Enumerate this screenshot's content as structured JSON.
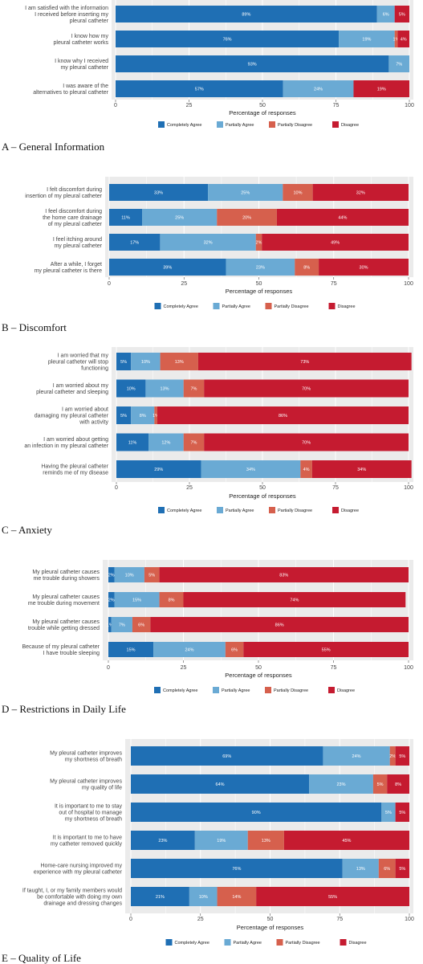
{
  "colors": {
    "Completely Agree": "#1f6fb4",
    "Partially Agree": "#6aaad4",
    "Partially Disagree": "#d6604d",
    "Disagree": "#c51b30",
    "panel": "#ebebeb",
    "grid": "#ffffff"
  },
  "chart_data": [
    {
      "type": "bar",
      "orientation": "horizontal",
      "stacked": true,
      "caption": "A – General Information",
      "xlabel": "Percentage of responses",
      "xlim": [
        0,
        100
      ],
      "xticks": [
        "0",
        "25",
        "50",
        "75",
        "100"
      ],
      "legend_position": "bottom",
      "legend": [
        "Completely Agree",
        "Partially Agree",
        "Partially Disagree",
        "Disagree"
      ],
      "categories": [
        [
          "I am satisfied with the information",
          "I received before inserting my",
          "pleural catheter"
        ],
        [
          "I know how my",
          "pleural catheter works"
        ],
        [
          "I know why I received",
          "my pleural catheter"
        ],
        [
          "I was aware of the",
          "alternatives to pleural catheter"
        ]
      ],
      "series": [
        {
          "name": "Completely Agree",
          "values": [
            89,
            76,
            93,
            57
          ],
          "labels": [
            "89%",
            "76%",
            "93%",
            "57%"
          ]
        },
        {
          "name": "Partially Agree",
          "values": [
            6,
            19,
            7,
            24
          ],
          "labels": [
            "6%",
            "19%",
            "7%",
            "24%"
          ]
        },
        {
          "name": "Partially Disagree",
          "values": [
            0,
            1,
            0,
            0
          ],
          "labels": [
            "",
            "1%",
            "",
            ""
          ]
        },
        {
          "name": "Disagree",
          "values": [
            5,
            4,
            0,
            19
          ],
          "labels": [
            "5%",
            "4%",
            "",
            "19%"
          ]
        }
      ]
    },
    {
      "type": "bar",
      "orientation": "horizontal",
      "stacked": true,
      "caption": "B – Discomfort",
      "xlabel": "Percentage of responses",
      "xlim": [
        0,
        100
      ],
      "xticks": [
        "0",
        "25",
        "50",
        "75",
        "100"
      ],
      "legend_position": "bottom",
      "legend": [
        "Completely Agree",
        "Partially Agree",
        "Partially Disagree",
        "Disagree"
      ],
      "categories": [
        [
          "I felt discomfort during",
          "insertion of my pleural catheter"
        ],
        [
          "I feel discomfort during",
          "the home care drainage",
          "of my pleural catheter"
        ],
        [
          "I feel itching around",
          "my pleural catheter"
        ],
        [
          "After a while, I forget",
          "my pleural catheter is there"
        ]
      ],
      "series": [
        {
          "name": "Completely Agree",
          "values": [
            33,
            11,
            17,
            39
          ],
          "labels": [
            "33%",
            "11%",
            "17%",
            "39%"
          ]
        },
        {
          "name": "Partially Agree",
          "values": [
            25,
            25,
            32,
            23
          ],
          "labels": [
            "25%",
            "25%",
            "32%",
            "23%"
          ]
        },
        {
          "name": "Partially Disagree",
          "values": [
            10,
            20,
            2,
            8
          ],
          "labels": [
            "10%",
            "20%",
            "2%",
            "8%"
          ]
        },
        {
          "name": "Disagree",
          "values": [
            32,
            44,
            49,
            30
          ],
          "labels": [
            "32%",
            "44%",
            "49%",
            "30%"
          ]
        }
      ]
    },
    {
      "type": "bar",
      "orientation": "horizontal",
      "stacked": true,
      "caption": "C – Anxiety",
      "xlabel": "Percentage of responses",
      "xlim": [
        0,
        100
      ],
      "xticks": [
        "0",
        "25",
        "50",
        "75",
        "100"
      ],
      "legend_position": "bottom",
      "legend": [
        "Completely Agree",
        "Partially Agree",
        "Partially Disagree",
        "Disagree"
      ],
      "categories": [
        [
          "I am worried that my",
          "pleural catheter will stop",
          "functioning"
        ],
        [
          "I am worried about my",
          "pleural catheter and sleeping"
        ],
        [
          "I am worried about",
          "damaging my pleural catheter",
          "with activity"
        ],
        [
          "I am worried about getting",
          "an infection in my pleural catheter"
        ],
        [
          "Having the pleural catheter",
          "reminds me of my disease"
        ]
      ],
      "series": [
        {
          "name": "Completely Agree",
          "values": [
            5,
            10,
            5,
            11,
            29
          ],
          "labels": [
            "5%",
            "10%",
            "5%",
            "11%",
            "29%"
          ]
        },
        {
          "name": "Partially Agree",
          "values": [
            10,
            13,
            8,
            12,
            34
          ],
          "labels": [
            "10%",
            "13%",
            "8%",
            "12%",
            "34%"
          ]
        },
        {
          "name": "Partially Disagree",
          "values": [
            13,
            7,
            1,
            7,
            4
          ],
          "labels": [
            "13%",
            "7%",
            "1%",
            "7%",
            "4%"
          ]
        },
        {
          "name": "Disagree",
          "values": [
            73,
            70,
            86,
            70,
            34
          ],
          "labels": [
            "73%",
            "70%",
            "86%",
            "70%",
            "34%"
          ]
        }
      ]
    },
    {
      "type": "bar",
      "orientation": "horizontal",
      "stacked": true,
      "caption": "D – Restrictions in Daily Life",
      "xlabel": "Percentage of responses",
      "xlim": [
        0,
        100
      ],
      "xticks": [
        "0",
        "25",
        "50",
        "75",
        "100"
      ],
      "legend_position": "bottom",
      "legend": [
        "Completely Agree",
        "Partially Agree",
        "Partially Disagree",
        "Disagree"
      ],
      "categories": [
        [
          "My pleural catheter causes",
          "me trouble during showers"
        ],
        [
          "My pleural catheter causes",
          "me trouble during movement"
        ],
        [
          "My pleural catheter causes",
          "trouble while getting dressed"
        ],
        [
          "Because of my pleural catheter",
          "I have trouble sleeping"
        ]
      ],
      "series": [
        {
          "name": "Completely Agree",
          "values": [
            2,
            2,
            1,
            15
          ],
          "labels": [
            "2%",
            "2%",
            "1%",
            "15%"
          ]
        },
        {
          "name": "Partially Agree",
          "values": [
            10,
            15,
            7,
            24
          ],
          "labels": [
            "10%",
            "15%",
            "7%",
            "24%"
          ]
        },
        {
          "name": "Partially Disagree",
          "values": [
            5,
            8,
            6,
            6
          ],
          "labels": [
            "5%",
            "8%",
            "6%",
            "6%"
          ]
        },
        {
          "name": "Disagree",
          "values": [
            83,
            74,
            86,
            55
          ],
          "labels": [
            "83%",
            "74%",
            "86%",
            "55%"
          ]
        }
      ]
    },
    {
      "type": "bar",
      "orientation": "horizontal",
      "stacked": true,
      "caption": "E – Quality of Life",
      "xlabel": "Percentage of responses",
      "xlim": [
        0,
        100
      ],
      "xticks": [
        "0",
        "25",
        "50",
        "75",
        "100"
      ],
      "legend_position": "bottom",
      "legend": [
        "Completely Agree",
        "Partially Agree",
        "Partially Disagree",
        "Disagree"
      ],
      "categories": [
        [
          "My pleural catheter improves",
          "my shortness of breath"
        ],
        [
          "My pleural catheter improves",
          "my quality of life"
        ],
        [
          "It is important to me to stay",
          "out of hospital to manage",
          "my shortness of breath"
        ],
        [
          "It is important to me to have",
          "my catheter removed quickly"
        ],
        [
          "Home-care nursing improved my",
          "experience with my pleural catheter"
        ],
        [
          "If taught, I, or my family members would",
          "be comfortable with doing my own",
          "drainage and dressing changes"
        ]
      ],
      "series": [
        {
          "name": "Completely Agree",
          "values": [
            69,
            64,
            90,
            23,
            76,
            21
          ],
          "labels": [
            "69%",
            "64%",
            "90%",
            "23%",
            "76%",
            "21%"
          ]
        },
        {
          "name": "Partially Agree",
          "values": [
            24,
            23,
            5,
            19,
            13,
            10
          ],
          "labels": [
            "24%",
            "23%",
            "5%",
            "19%",
            "13%",
            "10%"
          ]
        },
        {
          "name": "Partially Disagree",
          "values": [
            2,
            5,
            0,
            13,
            6,
            14
          ],
          "labels": [
            "2%",
            "5%",
            "",
            "13%",
            "6%",
            "14%"
          ]
        },
        {
          "name": "Disagree",
          "values": [
            5,
            8,
            5,
            45,
            5,
            55
          ],
          "labels": [
            "5%",
            "8%",
            "5%",
            "45%",
            "5%",
            "55%"
          ]
        }
      ]
    }
  ]
}
